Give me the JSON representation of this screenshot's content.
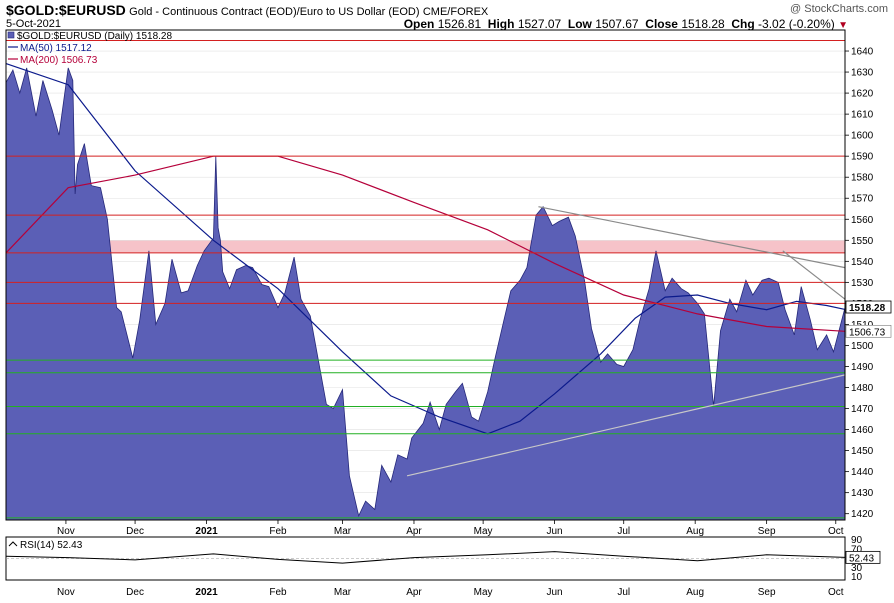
{
  "header": {
    "symbol": "$GOLD:$EURUSD",
    "description": "Gold - Continuous Contract (EOD)/Euro to US Dollar (EOD)",
    "exchange": "CME/FOREX",
    "brand": "@ StockCharts.com",
    "date": "5-Oct-2021",
    "open_label": "Open",
    "open": "1526.81",
    "high_label": "High",
    "high": "1527.07",
    "low_label": "Low",
    "low": "1507.67",
    "close_label": "Close",
    "close": "1518.28",
    "chg_label": "Chg",
    "chg": "-3.02 (-0.20%)"
  },
  "legend": {
    "price": "$GOLD:$EURUSD (Daily) 1518.28",
    "ma50": "MA(50) 1517.12",
    "ma200": "MA(200) 1506.73"
  },
  "colors": {
    "area": "#5b5fb6",
    "area_stroke": "#25287a",
    "ma50": "#0b1a8c",
    "ma200": "#b5003a",
    "red_level": "#d42020",
    "green_level": "#22b022",
    "band": "#f4b8c0",
    "trendline": "#8a8a8a"
  },
  "rsi": {
    "label": "RSI(14) 52.43",
    "value": "52.43",
    "levels": [
      "90",
      "70",
      "50",
      "30",
      "10"
    ]
  },
  "price_labels": {
    "close": "1518.28",
    "ma200": "1506.73"
  },
  "chart_data": {
    "type": "area",
    "title": "$GOLD:$EURUSD",
    "x_months": [
      "Nov",
      "Dec",
      "2021",
      "Feb",
      "Mar",
      "Apr",
      "May",
      "Jun",
      "Jul",
      "Aug",
      "Sep",
      "Oct"
    ],
    "y_ticks": [
      1420,
      1430,
      1440,
      1450,
      1460,
      1470,
      1480,
      1490,
      1500,
      1510,
      1520,
      1530,
      1540,
      1550,
      1560,
      1570,
      1580,
      1590,
      1600,
      1610,
      1620,
      1630,
      1640
    ],
    "ylim": [
      1417,
      1650
    ],
    "grid": true,
    "red_levels": [
      1645,
      1590,
      1562,
      1544,
      1530,
      1520
    ],
    "resistance_band": [
      1544,
      1550
    ],
    "green_levels": [
      1493,
      1487,
      1471,
      1458,
      1418
    ],
    "series": [
      {
        "name": "$GOLD:$EURUSD (Daily)",
        "x": [
          "2020-10-06",
          "2020-10-09",
          "2020-10-12",
          "2020-10-15",
          "2020-10-19",
          "2020-10-22",
          "2020-10-26",
          "2020-10-29",
          "2020-11-02",
          "2020-11-04",
          "2020-11-05",
          "2020-11-06",
          "2020-11-09",
          "2020-11-12",
          "2020-11-16",
          "2020-11-19",
          "2020-11-23",
          "2020-11-25",
          "2020-11-30",
          "2020-12-03",
          "2020-12-07",
          "2020-12-10",
          "2020-12-14",
          "2020-12-17",
          "2020-12-21",
          "2020-12-24",
          "2020-12-28",
          "2020-12-31",
          "2021-01-04",
          "2021-01-05",
          "2021-01-06",
          "2021-01-07",
          "2021-01-08",
          "2021-01-11",
          "2021-01-14",
          "2021-01-18",
          "2021-01-21",
          "2021-01-25",
          "2021-01-28",
          "2021-02-01",
          "2021-02-04",
          "2021-02-08",
          "2021-02-11",
          "2021-02-15",
          "2021-02-18",
          "2021-02-22",
          "2021-02-25",
          "2021-03-01",
          "2021-03-04",
          "2021-03-08",
          "2021-03-11",
          "2021-03-15",
          "2021-03-18",
          "2021-03-22",
          "2021-03-25",
          "2021-03-29",
          "2021-03-31",
          "2021-04-05",
          "2021-04-08",
          "2021-04-12",
          "2021-04-15",
          "2021-04-19",
          "2021-04-22",
          "2021-04-26",
          "2021-04-29",
          "2021-05-03",
          "2021-05-06",
          "2021-05-10",
          "2021-05-13",
          "2021-05-17",
          "2021-05-20",
          "2021-05-24",
          "2021-05-27",
          "2021-05-31",
          "2021-06-03",
          "2021-06-07",
          "2021-06-10",
          "2021-06-14",
          "2021-06-17",
          "2021-06-21",
          "2021-06-24",
          "2021-06-28",
          "2021-07-01",
          "2021-07-05",
          "2021-07-08",
          "2021-07-12",
          "2021-07-15",
          "2021-07-19",
          "2021-07-22",
          "2021-07-26",
          "2021-07-29",
          "2021-08-02",
          "2021-08-05",
          "2021-08-09",
          "2021-08-12",
          "2021-08-16",
          "2021-08-19",
          "2021-08-23",
          "2021-08-26",
          "2021-08-30",
          "2021-09-02",
          "2021-09-06",
          "2021-09-09",
          "2021-09-13",
          "2021-09-16",
          "2021-09-20",
          "2021-09-23",
          "2021-09-27",
          "2021-09-30",
          "2021-10-05"
        ],
        "values": [
          1625,
          1631,
          1620,
          1632,
          1609,
          1626,
          1612,
          1600,
          1632,
          1626,
          1572,
          1586,
          1596,
          1576,
          1575,
          1560,
          1518,
          1516,
          1494,
          1512,
          1545,
          1510,
          1520,
          1541,
          1525,
          1526,
          1538,
          1545,
          1551,
          1590,
          1556,
          1550,
          1535,
          1527,
          1536,
          1538,
          1537,
          1529,
          1528,
          1518,
          1525,
          1542,
          1522,
          1514,
          1496,
          1472,
          1470,
          1479,
          1438,
          1419,
          1426,
          1422,
          1443,
          1435,
          1448,
          1446,
          1456,
          1463,
          1473,
          1460,
          1472,
          1478,
          1482,
          1466,
          1464,
          1478,
          1493,
          1512,
          1526,
          1531,
          1537,
          1562,
          1566,
          1557,
          1559,
          1561,
          1552,
          1531,
          1508,
          1492,
          1496,
          1491,
          1490,
          1498,
          1512,
          1527,
          1545,
          1526,
          1532,
          1527,
          1525,
          1520,
          1515,
          1471,
          1507,
          1522,
          1516,
          1531,
          1524,
          1531,
          1532,
          1530,
          1517,
          1505,
          1528,
          1512,
          1498,
          1505,
          1497,
          1518
        ]
      },
      {
        "name": "MA(50)",
        "x": [
          "2020-10-06",
          "2020-11-02",
          "2020-12-01",
          "2021-01-04",
          "2021-02-01",
          "2021-03-01",
          "2021-03-22",
          "2021-04-12",
          "2021-05-03",
          "2021-05-17",
          "2021-06-01",
          "2021-06-21",
          "2021-07-06",
          "2021-07-19",
          "2021-08-02",
          "2021-08-16",
          "2021-09-01",
          "2021-09-14",
          "2021-09-27",
          "2021-10-05"
        ],
        "values": [
          1634,
          1624,
          1583,
          1550,
          1527,
          1497,
          1476,
          1466,
          1458,
          1464,
          1477,
          1496,
          1513,
          1523,
          1524,
          1520,
          1517,
          1521,
          1519,
          1517.12
        ]
      },
      {
        "name": "MA(200)",
        "x": [
          "2020-10-06",
          "2020-11-02",
          "2020-12-01",
          "2021-01-04",
          "2021-02-01",
          "2021-03-01",
          "2021-04-01",
          "2021-05-03",
          "2021-06-01",
          "2021-07-01",
          "2021-08-02",
          "2021-09-01",
          "2021-10-05"
        ],
        "values": [
          1544,
          1575,
          1581,
          1590,
          1590,
          1581,
          1568,
          1555,
          1539,
          1524,
          1515,
          1509,
          1506.73
        ]
      },
      {
        "name": "RSI(14)",
        "x": [
          "2020-10-06",
          "2020-11-02",
          "2020-12-01",
          "2021-01-04",
          "2021-02-01",
          "2021-03-01",
          "2021-04-01",
          "2021-05-03",
          "2021-06-01",
          "2021-07-01",
          "2021-08-02",
          "2021-09-01",
          "2021-10-05"
        ],
        "values": [
          55,
          52,
          47,
          60,
          48,
          40,
          52,
          58,
          65,
          55,
          45,
          58,
          52.43
        ]
      }
    ],
    "trendlines": [
      {
        "x": [
          "2021-05-25",
          "2021-10-05"
        ],
        "values": [
          1566,
          1537
        ]
      },
      {
        "x": [
          "2021-09-08",
          "2021-10-05"
        ],
        "values": [
          1545,
          1522
        ]
      },
      {
        "x": [
          "2021-03-29",
          "2021-10-05"
        ],
        "values": [
          1438,
          1486
        ]
      }
    ]
  }
}
